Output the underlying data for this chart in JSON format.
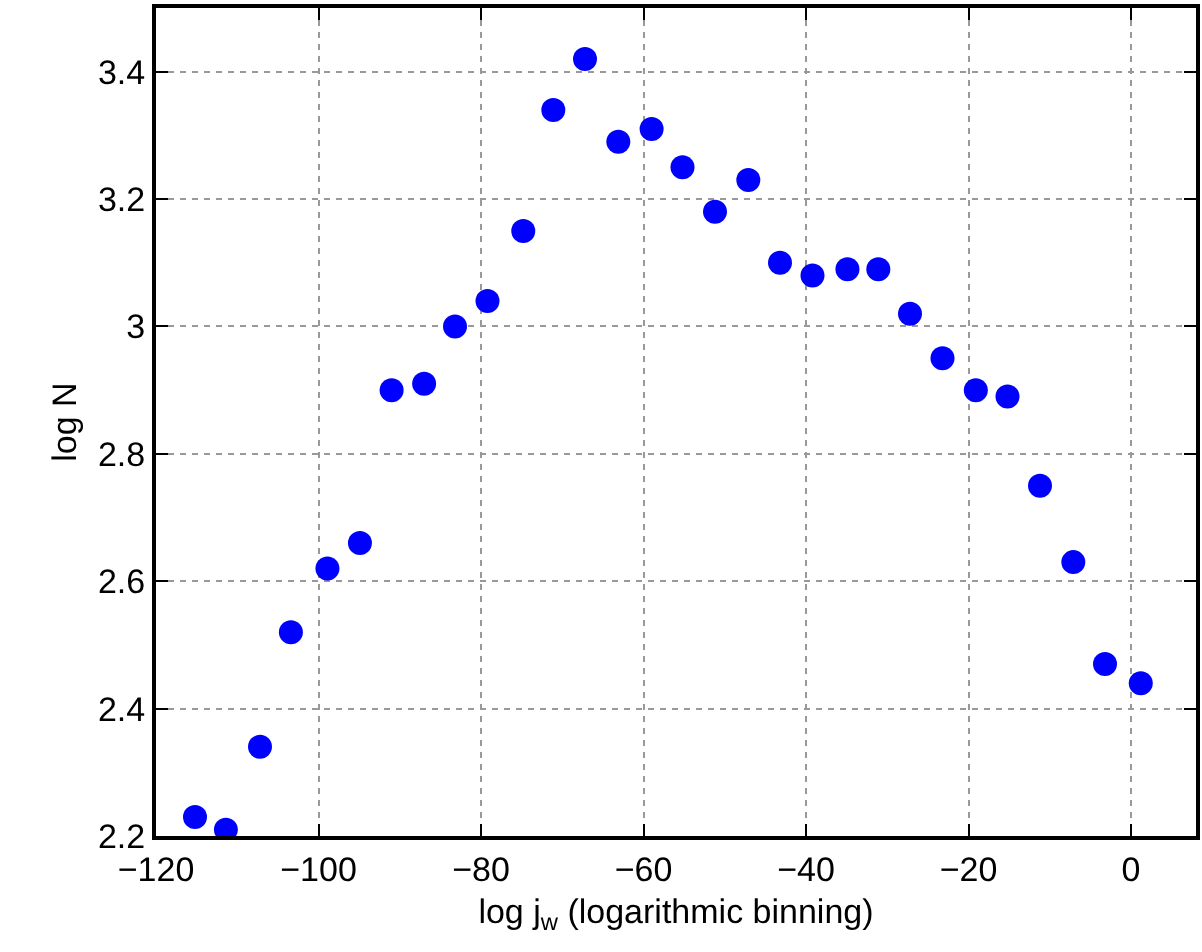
{
  "chart_data": {
    "type": "scatter",
    "xlabel": "log j$_{w}$ (logarithmic binning)",
    "ylabel": "log N",
    "x": [
      -115.2,
      -111.4,
      -107.2,
      -103.4,
      -98.9,
      -94.9,
      -91.0,
      -87.0,
      -83.2,
      -79.2,
      -74.8,
      -71.1,
      -67.2,
      -63.1,
      -59.0,
      -55.2,
      -51.2,
      -47.1,
      -43.2,
      -39.2,
      -34.9,
      -31.1,
      -27.2,
      -23.2,
      -19.1,
      -15.2,
      -11.2,
      -7.1,
      -3.2,
      1.2
    ],
    "series": [
      {
        "color": "#0000ff",
        "values": [
          2.23,
          2.21,
          2.34,
          2.52,
          2.62,
          2.66,
          2.9,
          2.91,
          3.0,
          3.04,
          3.15,
          3.34,
          3.42,
          3.29,
          3.31,
          3.25,
          3.18,
          3.23,
          3.1,
          3.08,
          3.09,
          3.09,
          3.02,
          2.95,
          2.9,
          2.89,
          2.75,
          2.63,
          2.47,
          2.44
        ]
      }
    ],
    "xlim": [
      -120,
      8
    ],
    "xticks": [
      {
        "value": -120,
        "label": "−120"
      },
      {
        "value": -100,
        "label": "−100"
      },
      {
        "value": -80,
        "label": "−80"
      },
      {
        "value": -60,
        "label": "−60"
      },
      {
        "value": -40,
        "label": "−40"
      },
      {
        "value": -20,
        "label": "−20"
      },
      0
    ],
    "ylim": [
      2.2,
      3.5
    ],
    "yticks": [
      2.2,
      2.4,
      2.6,
      2.8,
      3,
      3.2,
      3.4
    ],
    "grid": true,
    "marker": "circle"
  }
}
